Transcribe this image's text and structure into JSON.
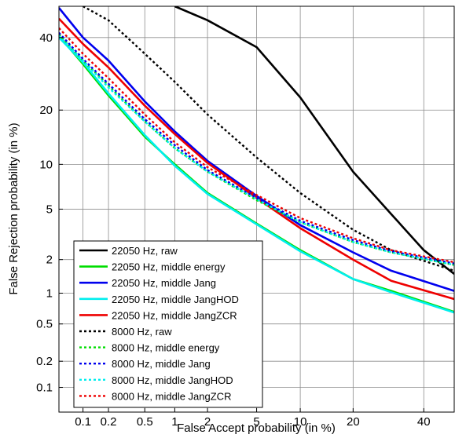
{
  "chart_data": {
    "type": "line",
    "title": "",
    "xlabel": "False Accept probability (in %)",
    "ylabel": "False Rejection probability (in %)",
    "x_scale": "normal-deviate",
    "y_scale": "normal-deviate",
    "xlim": [
      0.05,
      50
    ],
    "ylim": [
      0.05,
      50
    ],
    "xticks": [
      0.1,
      0.2,
      0.5,
      1,
      2,
      5,
      10,
      20,
      40
    ],
    "xtick_labels": [
      "0.1",
      "0.2",
      "0.5",
      "1",
      "2",
      "5",
      "10",
      "20",
      "40"
    ],
    "yticks": [
      0.1,
      0.2,
      0.5,
      1,
      2,
      5,
      10,
      20,
      40
    ],
    "ytick_labels": [
      "0.1",
      "0.2",
      "0.5",
      "1",
      "2",
      "5",
      "10",
      "20",
      "40"
    ],
    "grid": true,
    "legend_position": "bottom-left",
    "series": [
      {
        "name": "22050 Hz, raw",
        "color": "#000000",
        "dash": "solid",
        "points": [
          [
            1,
            50
          ],
          [
            2,
            45.5
          ],
          [
            5,
            37
          ],
          [
            10,
            23
          ],
          [
            20,
            9
          ],
          [
            30,
            4.6
          ],
          [
            40,
            2.4
          ],
          [
            50,
            1.5
          ]
        ]
      },
      {
        "name": "22050 Hz, middle energy",
        "color": "#00dd00",
        "dash": "solid",
        "points": [
          [
            0.05,
            40.5
          ],
          [
            0.1,
            32
          ],
          [
            0.2,
            23.5
          ],
          [
            0.5,
            14.5
          ],
          [
            1,
            10
          ],
          [
            2,
            6.5
          ],
          [
            5,
            3.9
          ],
          [
            10,
            2.4
          ],
          [
            20,
            1.35
          ],
          [
            30,
            1.05
          ],
          [
            50,
            0.66
          ]
        ]
      },
      {
        "name": "22050 Hz, middle Jang",
        "color": "#0000ee",
        "dash": "solid",
        "points": [
          [
            0.05,
            49.5
          ],
          [
            0.1,
            40
          ],
          [
            0.2,
            33
          ],
          [
            0.5,
            22
          ],
          [
            1,
            15.5
          ],
          [
            2,
            10.5
          ],
          [
            5,
            6.2
          ],
          [
            10,
            3.8
          ],
          [
            20,
            2.3
          ],
          [
            30,
            1.6
          ],
          [
            50,
            1.05
          ]
        ]
      },
      {
        "name": "22050 Hz, middle JangHOD",
        "color": "#00eeee",
        "dash": "solid",
        "points": [
          [
            0.05,
            40
          ],
          [
            0.1,
            32.5
          ],
          [
            0.2,
            24
          ],
          [
            0.5,
            14.8
          ],
          [
            1,
            9.8
          ],
          [
            2,
            6.4
          ],
          [
            5,
            3.85
          ],
          [
            10,
            2.35
          ],
          [
            20,
            1.35
          ],
          [
            30,
            1.02
          ],
          [
            50,
            0.65
          ]
        ]
      },
      {
        "name": "22050 Hz, middle JangZCR",
        "color": "#ee0000",
        "dash": "solid",
        "points": [
          [
            0.05,
            46
          ],
          [
            0.1,
            38
          ],
          [
            0.2,
            31
          ],
          [
            0.5,
            21
          ],
          [
            1,
            15
          ],
          [
            2,
            10.2
          ],
          [
            5,
            6
          ],
          [
            10,
            3.6
          ],
          [
            20,
            2
          ],
          [
            30,
            1.3
          ],
          [
            50,
            0.88
          ]
        ]
      },
      {
        "name": "8000 Hz, raw",
        "color": "#000000",
        "dash": "dot",
        "points": [
          [
            0.1,
            50
          ],
          [
            0.2,
            45.5
          ],
          [
            0.5,
            35
          ],
          [
            1,
            27
          ],
          [
            2,
            19
          ],
          [
            5,
            11
          ],
          [
            10,
            6.5
          ],
          [
            20,
            3.5
          ],
          [
            30,
            2.4
          ],
          [
            50,
            1.6
          ]
        ]
      },
      {
        "name": "8000 Hz, middle energy",
        "color": "#00dd00",
        "dash": "dot",
        "points": [
          [
            0.05,
            41
          ],
          [
            0.1,
            33
          ],
          [
            0.2,
            26
          ],
          [
            0.5,
            17.5
          ],
          [
            1,
            12.5
          ],
          [
            2,
            9
          ],
          [
            5,
            5.8
          ],
          [
            10,
            4
          ],
          [
            20,
            2.8
          ],
          [
            30,
            2.3
          ],
          [
            50,
            1.8
          ]
        ]
      },
      {
        "name": "8000 Hz, middle Jang",
        "color": "#0000ee",
        "dash": "dot",
        "points": [
          [
            0.05,
            41.5
          ],
          [
            0.1,
            33.5
          ],
          [
            0.2,
            26.5
          ],
          [
            0.5,
            18
          ],
          [
            1,
            13
          ],
          [
            2,
            9.2
          ],
          [
            5,
            6
          ],
          [
            10,
            4.1
          ],
          [
            20,
            2.9
          ],
          [
            30,
            2.35
          ],
          [
            50,
            1.85
          ]
        ]
      },
      {
        "name": "8000 Hz, middle JangHOD",
        "color": "#00eeee",
        "dash": "dot",
        "points": [
          [
            0.05,
            40.5
          ],
          [
            0.1,
            33
          ],
          [
            0.2,
            25.5
          ],
          [
            0.5,
            17.5
          ],
          [
            1,
            12.5
          ],
          [
            2,
            9
          ],
          [
            5,
            5.9
          ],
          [
            10,
            4
          ],
          [
            20,
            2.8
          ],
          [
            30,
            2.3
          ],
          [
            50,
            1.8
          ]
        ]
      },
      {
        "name": "8000 Hz, middle JangZCR",
        "color": "#ee0000",
        "dash": "dot",
        "points": [
          [
            0.05,
            43
          ],
          [
            0.1,
            35
          ],
          [
            0.2,
            28
          ],
          [
            0.5,
            19
          ],
          [
            1,
            13.5
          ],
          [
            2,
            9.6
          ],
          [
            5,
            6.3
          ],
          [
            10,
            4.3
          ],
          [
            20,
            3
          ],
          [
            30,
            2.4
          ],
          [
            50,
            1.9
          ]
        ]
      }
    ]
  }
}
